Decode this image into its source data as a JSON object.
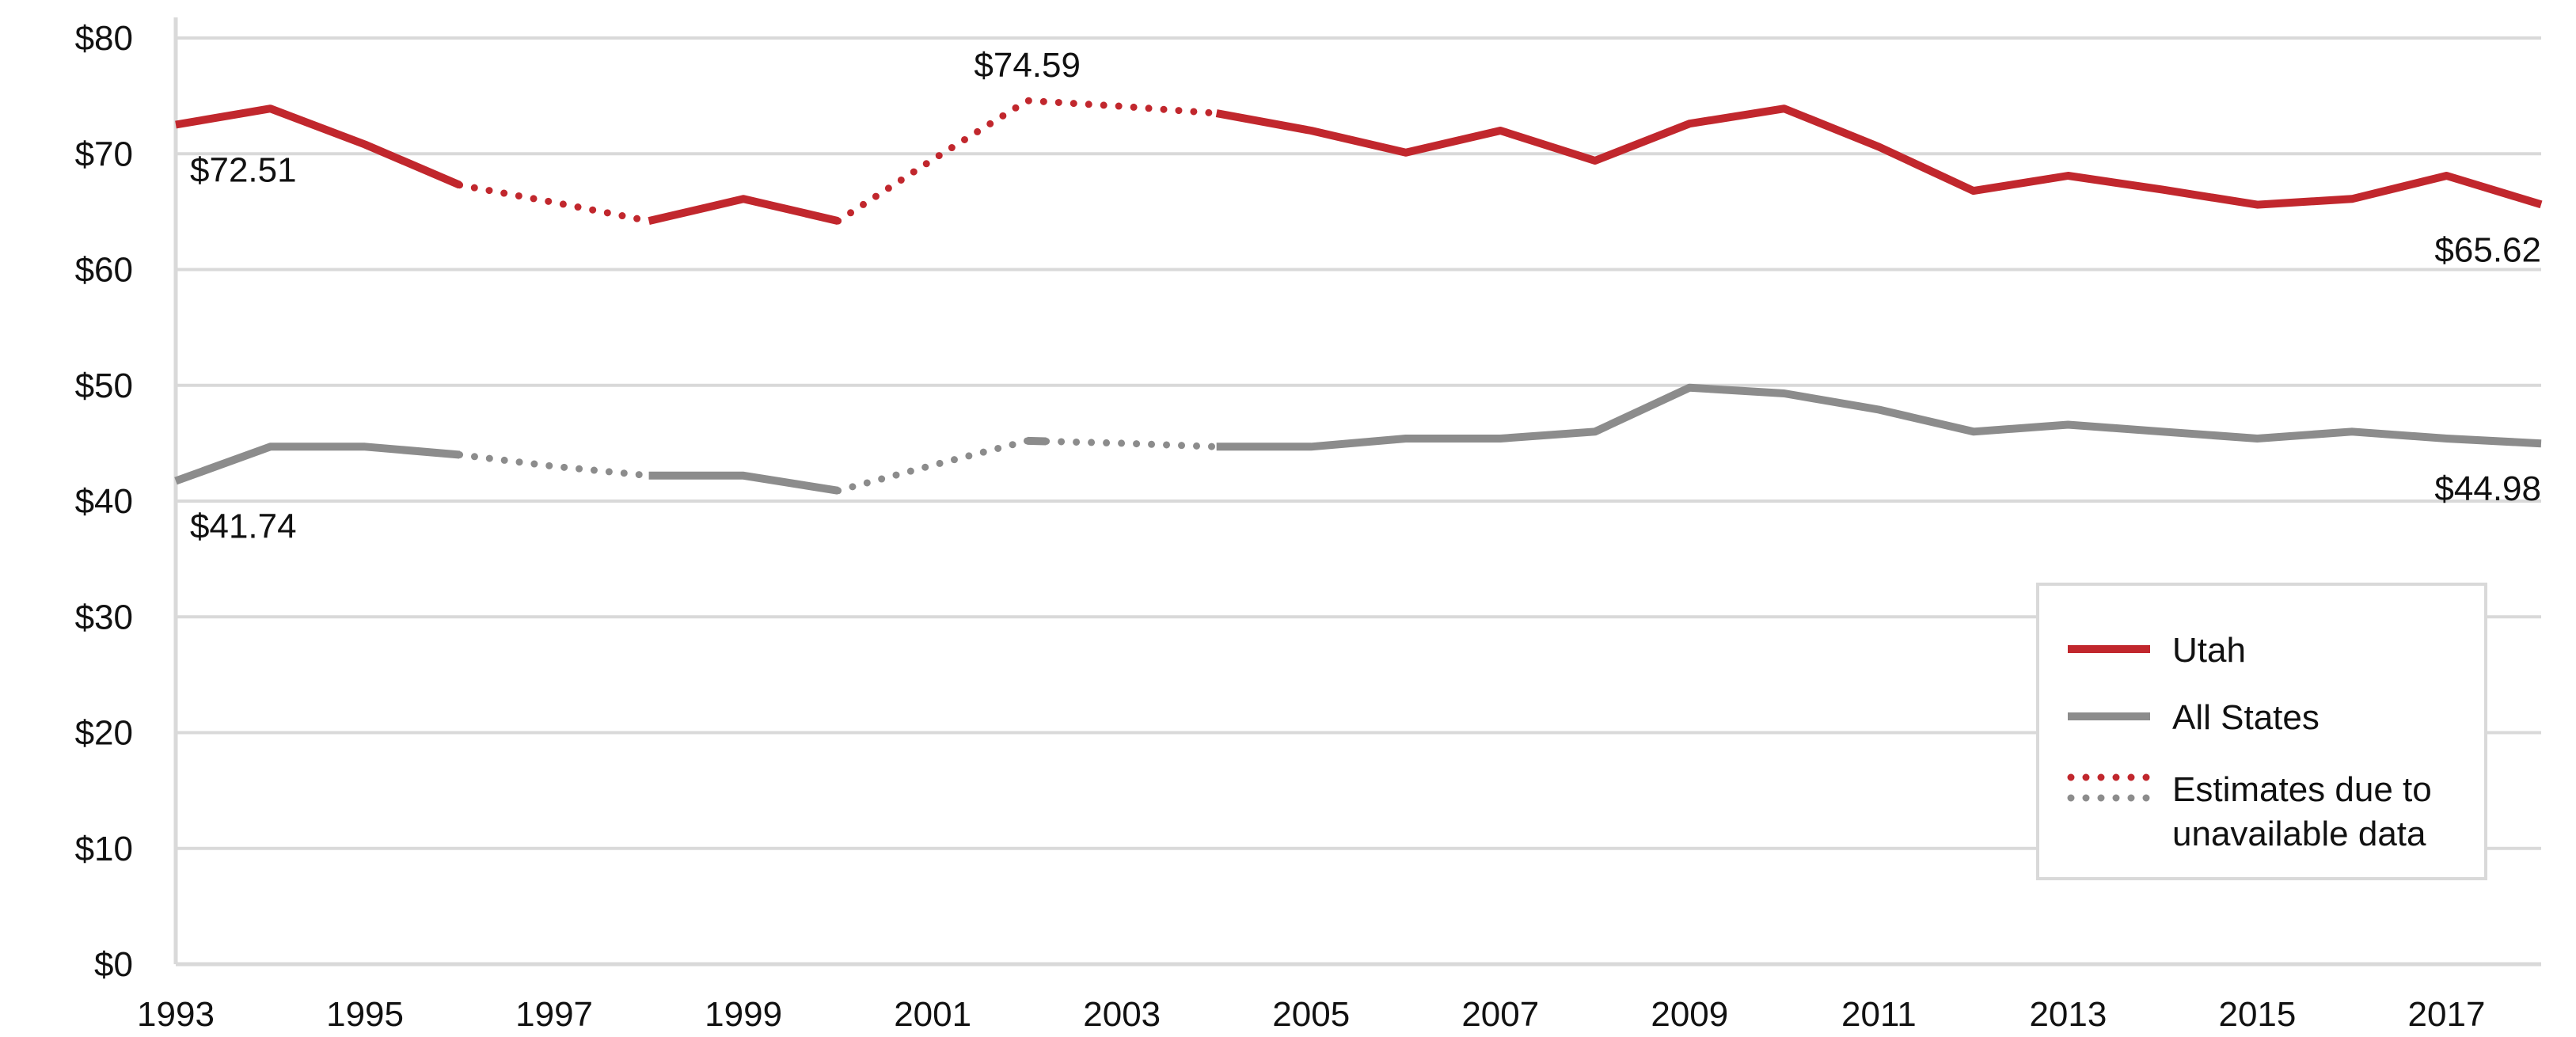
{
  "chart_data": {
    "type": "line",
    "title": "",
    "xlabel": "",
    "ylabel": "",
    "x": [
      1993,
      1994,
      1995,
      1996,
      1997,
      1998,
      1999,
      2000,
      2001,
      2002,
      2003,
      2004,
      2005,
      2006,
      2007,
      2008,
      2009,
      2010,
      2011,
      2012,
      2013,
      2014,
      2015,
      2016,
      2017,
      2018
    ],
    "xlim": [
      1993,
      2018
    ],
    "ylim": [
      0,
      80
    ],
    "x_ticks": [
      1993,
      1995,
      1997,
      1999,
      2001,
      2003,
      2005,
      2007,
      2009,
      2011,
      2013,
      2015,
      2017
    ],
    "y_ticks": [
      {
        "value": 0,
        "label": "$0"
      },
      {
        "value": 10,
        "label": "$10"
      },
      {
        "value": 20,
        "label": "$20"
      },
      {
        "value": 30,
        "label": "$30"
      },
      {
        "value": 40,
        "label": "$40"
      },
      {
        "value": 50,
        "label": "$50"
      },
      {
        "value": 60,
        "label": "$60"
      },
      {
        "value": 70,
        "label": "$70"
      },
      {
        "value": 80,
        "label": "$80"
      }
    ],
    "grid": "horizontal",
    "legend_position": "bottom-right",
    "series": [
      {
        "name": "Utah",
        "color": "#c1272d",
        "values": [
          72.51,
          73.9,
          70.8,
          67.3,
          65.8,
          64.2,
          66.1,
          64.2,
          69.5,
          74.59,
          74.1,
          73.5,
          72.0,
          70.1,
          72.0,
          69.4,
          72.6,
          73.9,
          70.6,
          66.8,
          68.1,
          66.9,
          65.6,
          66.1,
          68.1,
          65.62
        ],
        "estimated_segments": [
          [
            1996,
            1998
          ],
          [
            2000,
            2004
          ]
        ]
      },
      {
        "name": "All States",
        "color": "#8c8c8c",
        "values": [
          41.74,
          44.7,
          44.7,
          44.0,
          43.0,
          42.2,
          42.2,
          40.9,
          43.1,
          45.2,
          45.0,
          44.7,
          44.7,
          45.4,
          45.4,
          46.0,
          49.8,
          49.3,
          47.9,
          46.0,
          46.6,
          46.0,
          45.4,
          46.0,
          45.4,
          44.98
        ],
        "estimated_segments": [
          [
            1996,
            1998
          ],
          [
            2000,
            2002
          ],
          [
            2002.2,
            2004
          ]
        ]
      }
    ],
    "annotations": [
      {
        "series": 0,
        "x": 1993,
        "text": "$72.51",
        "position": "below-right"
      },
      {
        "series": 0,
        "x": 2002,
        "text": "$74.59",
        "position": "above"
      },
      {
        "series": 0,
        "x": 2018,
        "text": "$65.62",
        "position": "below-left"
      },
      {
        "series": 1,
        "x": 1993,
        "text": "$41.74",
        "position": "below-right"
      },
      {
        "series": 1,
        "x": 2018,
        "text": "$44.98",
        "position": "below-left"
      }
    ],
    "legend": {
      "utah": "Utah",
      "all_states": "All States",
      "estimates_line1": "Estimates due to",
      "estimates_line2": "unavailable data"
    }
  }
}
